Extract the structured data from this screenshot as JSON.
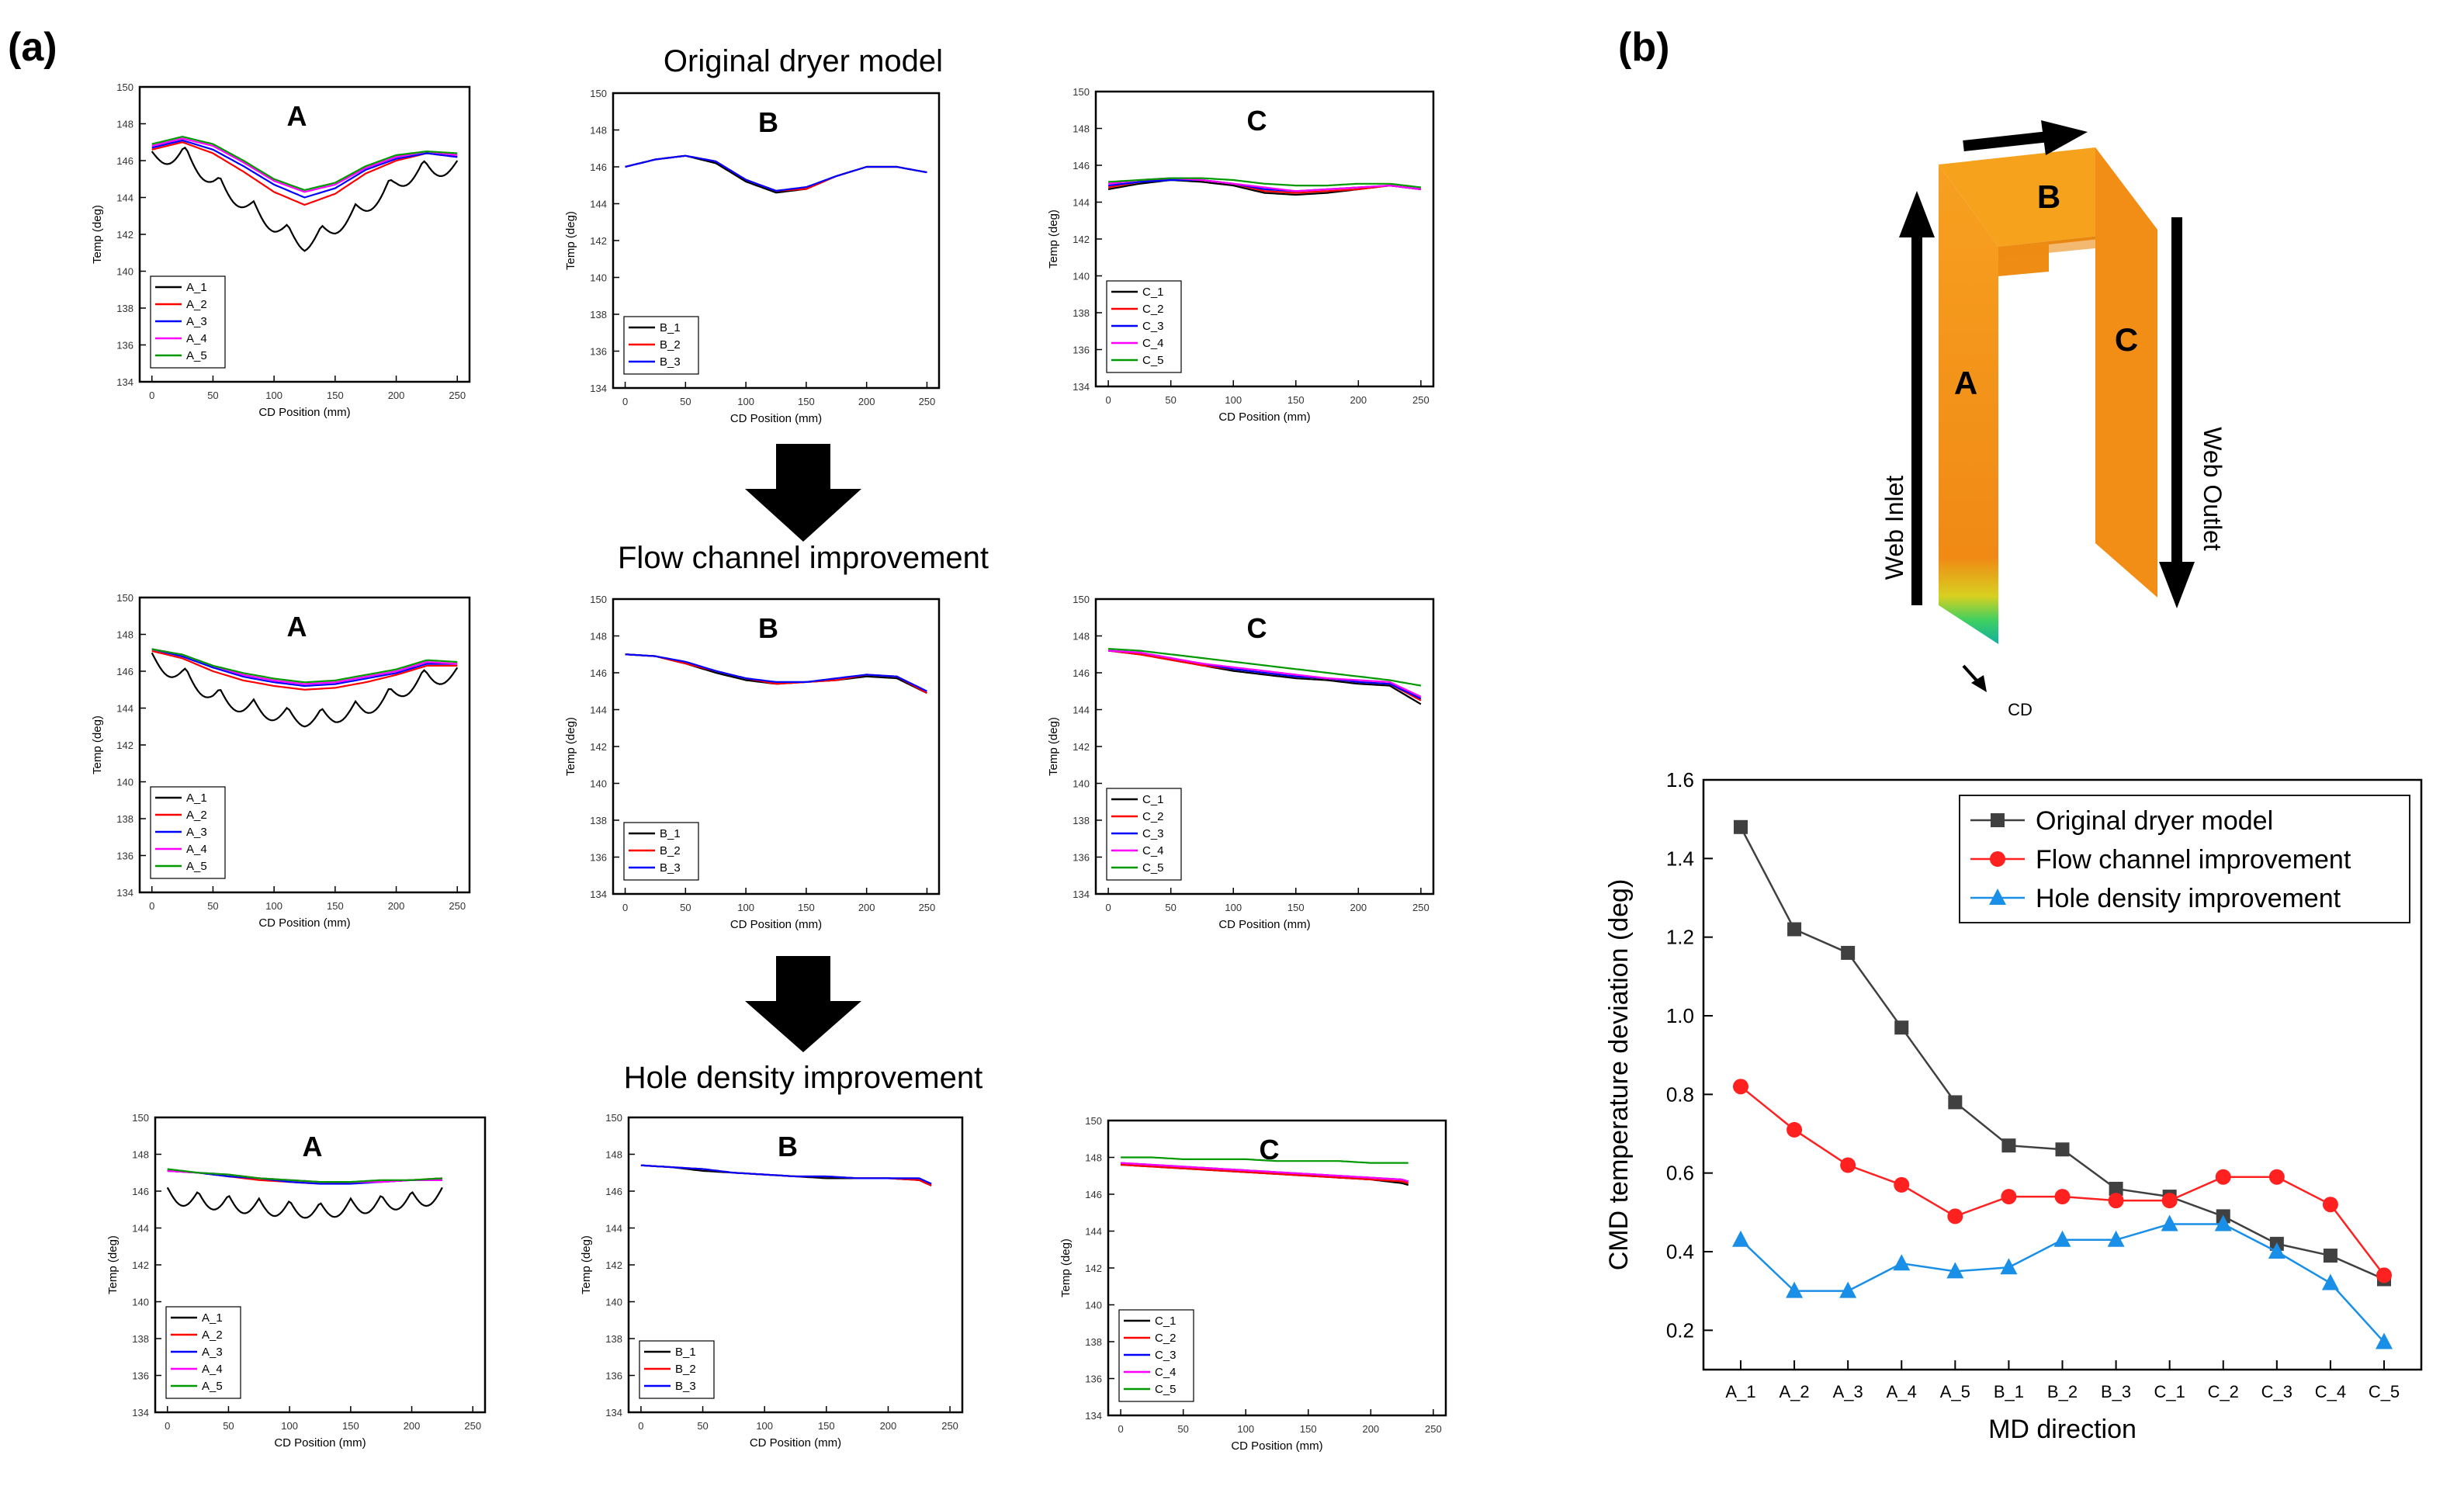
{
  "panel_labels": {
    "a": "(a)",
    "b": "(b)"
  },
  "row_titles": [
    "Original dryer model",
    "Flow channel improvement",
    "Hole density improvement"
  ],
  "small_axes": {
    "xlabel": "CD Position (mm)",
    "ylabel": "Temp (deg)"
  },
  "series_colors": [
    "#000000",
    "#ff0000",
    "#0000ff",
    "#ff00ff",
    "#009900"
  ],
  "diagram": {
    "labels": {
      "A": "A",
      "B": "B",
      "C": "C"
    },
    "inlet": "Web Inlet",
    "outlet": "Web Outlet",
    "cd": "CD"
  },
  "chart_data": [
    {
      "id": "orig-A",
      "type": "line",
      "title": "A",
      "xlabel": "CD Position (mm)",
      "ylabel": "Temp (deg)",
      "xlim": [
        -10,
        260
      ],
      "ylim": [
        134,
        150
      ],
      "xticks": [
        0,
        50,
        100,
        150,
        200,
        250
      ],
      "yticks": [
        134,
        136,
        138,
        140,
        142,
        144,
        146,
        148,
        150
      ],
      "legend": "bottom-left",
      "x": [
        0,
        25,
        50,
        75,
        100,
        125,
        150,
        175,
        200,
        225,
        250
      ],
      "series": [
        {
          "name": "A_1",
          "values": [
            146.5,
            146.9,
            145.4,
            144.2,
            143.0,
            142.0,
            142.9,
            144.0,
            145.3,
            146.1,
            146.0
          ],
          "ripple": true
        },
        {
          "name": "A_2",
          "values": [
            146.6,
            147.0,
            146.4,
            145.4,
            144.3,
            143.6,
            144.2,
            145.3,
            146.0,
            146.4,
            146.2
          ]
        },
        {
          "name": "A_3",
          "values": [
            146.7,
            147.1,
            146.6,
            145.7,
            144.7,
            144.0,
            144.5,
            145.5,
            146.1,
            146.4,
            146.2
          ]
        },
        {
          "name": "A_4",
          "values": [
            146.8,
            147.2,
            146.8,
            145.9,
            144.9,
            144.3,
            144.7,
            145.6,
            146.2,
            146.5,
            146.3
          ]
        },
        {
          "name": "A_5",
          "values": [
            146.9,
            147.3,
            146.9,
            146.0,
            145.0,
            144.4,
            144.8,
            145.7,
            146.3,
            146.5,
            146.4
          ]
        }
      ]
    },
    {
      "id": "orig-B",
      "type": "line",
      "title": "B",
      "xlabel": "CD Position (mm)",
      "ylabel": "Temp (deg)",
      "xlim": [
        -10,
        260
      ],
      "ylim": [
        134,
        150
      ],
      "xticks": [
        0,
        50,
        100,
        150,
        200,
        250
      ],
      "yticks": [
        134,
        136,
        138,
        140,
        142,
        144,
        146,
        148,
        150
      ],
      "legend": "bottom-left",
      "x": [
        0,
        25,
        50,
        75,
        100,
        125,
        150,
        175,
        200,
        225,
        250
      ],
      "series": [
        {
          "name": "B_1",
          "values": [
            146.0,
            146.4,
            146.6,
            146.2,
            145.2,
            144.6,
            144.8,
            145.5,
            146.0,
            146.0,
            145.7
          ]
        },
        {
          "name": "B_2",
          "values": [
            146.0,
            146.4,
            146.6,
            146.3,
            145.3,
            144.7,
            144.8,
            145.5,
            146.0,
            146.0,
            145.7
          ]
        },
        {
          "name": "B_3",
          "values": [
            146.0,
            146.4,
            146.6,
            146.3,
            145.3,
            144.7,
            144.9,
            145.5,
            146.0,
            146.0,
            145.7
          ]
        }
      ]
    },
    {
      "id": "orig-C",
      "type": "line",
      "title": "C",
      "xlabel": "CD Position (mm)",
      "ylabel": "Temp (deg)",
      "xlim": [
        -10,
        260
      ],
      "ylim": [
        134,
        150
      ],
      "xticks": [
        0,
        50,
        100,
        150,
        200,
        250
      ],
      "yticks": [
        134,
        136,
        138,
        140,
        142,
        144,
        146,
        148,
        150
      ],
      "legend": "bottom-left",
      "x": [
        0,
        25,
        50,
        75,
        100,
        125,
        150,
        175,
        200,
        225,
        250
      ],
      "series": [
        {
          "name": "C_1",
          "values": [
            144.7,
            145.0,
            145.2,
            145.1,
            144.9,
            144.5,
            144.4,
            144.5,
            144.7,
            144.9,
            144.7
          ]
        },
        {
          "name": "C_2",
          "values": [
            144.8,
            145.1,
            145.3,
            145.2,
            145.0,
            144.6,
            144.5,
            144.6,
            144.7,
            144.9,
            144.7
          ]
        },
        {
          "name": "C_3",
          "values": [
            144.9,
            145.1,
            145.2,
            145.2,
            145.0,
            144.7,
            144.6,
            144.7,
            144.8,
            144.9,
            144.7
          ]
        },
        {
          "name": "C_4",
          "values": [
            145.0,
            145.2,
            145.3,
            145.2,
            145.0,
            144.8,
            144.6,
            144.7,
            144.8,
            144.9,
            144.7
          ]
        },
        {
          "name": "C_5",
          "values": [
            145.1,
            145.2,
            145.3,
            145.3,
            145.2,
            145.0,
            144.9,
            144.9,
            145.0,
            145.0,
            144.8
          ]
        }
      ]
    },
    {
      "id": "flow-A",
      "type": "line",
      "title": "A",
      "xlabel": "CD Position (mm)",
      "ylabel": "Temp (deg)",
      "xlim": [
        -10,
        260
      ],
      "ylim": [
        134,
        150
      ],
      "xticks": [
        0,
        50,
        100,
        150,
        200,
        250
      ],
      "yticks": [
        134,
        136,
        138,
        140,
        142,
        144,
        146,
        148,
        150
      ],
      "legend": "bottom-left",
      "x": [
        0,
        25,
        50,
        75,
        100,
        125,
        150,
        175,
        200,
        225,
        250
      ],
      "series": [
        {
          "name": "A_1",
          "values": [
            147.0,
            146.3,
            145.2,
            144.6,
            144.2,
            143.9,
            144.1,
            144.5,
            145.3,
            146.2,
            146.2
          ],
          "ripple": true
        },
        {
          "name": "A_2",
          "values": [
            147.1,
            146.7,
            146.0,
            145.5,
            145.2,
            145.0,
            145.1,
            145.4,
            145.8,
            146.3,
            146.3
          ]
        },
        {
          "name": "A_3",
          "values": [
            147.2,
            146.8,
            146.2,
            145.7,
            145.4,
            145.2,
            145.3,
            145.6,
            145.9,
            146.4,
            146.4
          ]
        },
        {
          "name": "A_4",
          "values": [
            147.2,
            146.9,
            146.3,
            145.8,
            145.5,
            145.3,
            145.4,
            145.7,
            146.0,
            146.5,
            146.4
          ]
        },
        {
          "name": "A_5",
          "values": [
            147.2,
            146.9,
            146.3,
            145.9,
            145.6,
            145.4,
            145.5,
            145.8,
            146.1,
            146.6,
            146.5
          ]
        }
      ]
    },
    {
      "id": "flow-B",
      "type": "line",
      "title": "B",
      "xlabel": "CD Position (mm)",
      "ylabel": "Temp (deg)",
      "xlim": [
        -10,
        260
      ],
      "ylim": [
        134,
        150
      ],
      "xticks": [
        0,
        50,
        100,
        150,
        200,
        250
      ],
      "yticks": [
        134,
        136,
        138,
        140,
        142,
        144,
        146,
        148,
        150
      ],
      "legend": "bottom-left",
      "x": [
        0,
        25,
        50,
        75,
        100,
        125,
        150,
        175,
        200,
        225,
        250
      ],
      "series": [
        {
          "name": "B_1",
          "values": [
            147.0,
            146.9,
            146.5,
            146.0,
            145.6,
            145.4,
            145.5,
            145.6,
            145.8,
            145.7,
            144.9
          ]
        },
        {
          "name": "B_2",
          "values": [
            147.0,
            146.9,
            146.5,
            146.1,
            145.7,
            145.4,
            145.5,
            145.6,
            145.9,
            145.8,
            144.9
          ]
        },
        {
          "name": "B_3",
          "values": [
            147.0,
            146.9,
            146.6,
            146.1,
            145.7,
            145.5,
            145.5,
            145.7,
            145.9,
            145.8,
            145.0
          ]
        }
      ]
    },
    {
      "id": "flow-C",
      "type": "line",
      "title": "C",
      "xlabel": "CD Position (mm)",
      "ylabel": "Temp (deg)",
      "xlim": [
        -10,
        260
      ],
      "ylim": [
        134,
        150
      ],
      "xticks": [
        0,
        50,
        100,
        150,
        200,
        250
      ],
      "yticks": [
        134,
        136,
        138,
        140,
        142,
        144,
        146,
        148,
        150
      ],
      "legend": "bottom-left",
      "x": [
        0,
        25,
        50,
        75,
        100,
        125,
        150,
        175,
        200,
        225,
        250
      ],
      "series": [
        {
          "name": "C_1",
          "values": [
            147.2,
            147.0,
            146.7,
            146.4,
            146.1,
            145.9,
            145.7,
            145.6,
            145.4,
            145.3,
            144.3
          ]
        },
        {
          "name": "C_2",
          "values": [
            147.2,
            147.0,
            146.7,
            146.4,
            146.2,
            146.0,
            145.8,
            145.7,
            145.5,
            145.4,
            144.5
          ]
        },
        {
          "name": "C_3",
          "values": [
            147.2,
            147.1,
            146.8,
            146.5,
            146.2,
            146.0,
            145.8,
            145.7,
            145.5,
            145.4,
            144.6
          ]
        },
        {
          "name": "C_4",
          "values": [
            147.2,
            147.1,
            146.8,
            146.5,
            146.3,
            146.1,
            145.9,
            145.7,
            145.6,
            145.5,
            144.7
          ]
        },
        {
          "name": "C_5",
          "values": [
            147.3,
            147.2,
            147.0,
            146.8,
            146.6,
            146.4,
            146.2,
            146.0,
            145.8,
            145.6,
            145.3
          ]
        }
      ]
    },
    {
      "id": "hole-A",
      "type": "line",
      "title": "A",
      "xlabel": "CD Position (mm)",
      "ylabel": "Temp (deg)",
      "xlim": [
        -10,
        260
      ],
      "ylim": [
        134,
        150
      ],
      "xticks": [
        0,
        50,
        100,
        150,
        200,
        250
      ],
      "yticks": [
        134,
        136,
        138,
        140,
        142,
        144,
        146,
        148,
        150
      ],
      "legend": "bottom-left",
      "x": [
        0,
        25,
        50,
        75,
        100,
        125,
        150,
        175,
        200,
        225
      ],
      "series": [
        {
          "name": "A_1",
          "values": [
            146.2,
            146.0,
            145.8,
            145.6,
            145.5,
            145.4,
            145.6,
            145.8,
            146.0,
            146.2
          ],
          "ripple": true
        },
        {
          "name": "A_2",
          "values": [
            147.1,
            147.0,
            146.8,
            146.6,
            146.5,
            146.4,
            146.5,
            146.5,
            146.6,
            146.7
          ]
        },
        {
          "name": "A_3",
          "values": [
            147.1,
            147.0,
            146.8,
            146.7,
            146.5,
            146.4,
            146.4,
            146.5,
            146.6,
            146.6
          ]
        },
        {
          "name": "A_4",
          "values": [
            147.1,
            147.0,
            146.9,
            146.7,
            146.6,
            146.5,
            146.5,
            146.5,
            146.6,
            146.6
          ]
        },
        {
          "name": "A_5",
          "values": [
            147.2,
            147.0,
            146.9,
            146.7,
            146.6,
            146.5,
            146.5,
            146.6,
            146.6,
            146.7
          ]
        }
      ]
    },
    {
      "id": "hole-B",
      "type": "line",
      "title": "B",
      "xlabel": "CD Position (mm)",
      "ylabel": "Temp (deg)",
      "xlim": [
        -10,
        260
      ],
      "ylim": [
        134,
        150
      ],
      "xticks": [
        0,
        50,
        100,
        150,
        200,
        250
      ],
      "yticks": [
        134,
        136,
        138,
        140,
        142,
        144,
        146,
        148,
        150
      ],
      "legend": "bottom-left",
      "x": [
        0,
        25,
        50,
        75,
        100,
        125,
        150,
        175,
        200,
        225,
        235
      ],
      "series": [
        {
          "name": "B_1",
          "values": [
            147.4,
            147.3,
            147.1,
            147.0,
            146.9,
            146.8,
            146.7,
            146.7,
            146.7,
            146.6,
            146.3
          ]
        },
        {
          "name": "B_2",
          "values": [
            147.4,
            147.3,
            147.2,
            147.0,
            146.9,
            146.8,
            146.8,
            146.7,
            146.7,
            146.6,
            146.3
          ]
        },
        {
          "name": "B_3",
          "values": [
            147.4,
            147.3,
            147.2,
            147.0,
            146.9,
            146.8,
            146.8,
            146.7,
            146.7,
            146.7,
            146.4
          ]
        }
      ]
    },
    {
      "id": "hole-C",
      "type": "line",
      "title": "C",
      "xlabel": "CD Position (mm)",
      "ylabel": "Temp (deg)",
      "xlim": [
        -10,
        260
      ],
      "ylim": [
        134,
        150
      ],
      "xticks": [
        0,
        50,
        100,
        150,
        200,
        250
      ],
      "yticks": [
        134,
        136,
        138,
        140,
        142,
        144,
        146,
        148,
        150
      ],
      "legend": "bottom-left",
      "x": [
        0,
        25,
        50,
        75,
        100,
        125,
        150,
        175,
        200,
        225,
        230
      ],
      "series": [
        {
          "name": "C_1",
          "values": [
            147.6,
            147.5,
            147.4,
            147.3,
            147.2,
            147.1,
            147.0,
            146.9,
            146.8,
            146.6,
            146.5
          ]
        },
        {
          "name": "C_2",
          "values": [
            147.6,
            147.5,
            147.4,
            147.3,
            147.2,
            147.1,
            147.0,
            146.9,
            146.8,
            146.7,
            146.6
          ]
        },
        {
          "name": "C_3",
          "values": [
            147.7,
            147.6,
            147.5,
            147.4,
            147.3,
            147.2,
            147.1,
            147.0,
            146.9,
            146.8,
            146.7
          ]
        },
        {
          "name": "C_4",
          "values": [
            147.7,
            147.6,
            147.5,
            147.4,
            147.3,
            147.2,
            147.1,
            147.0,
            146.9,
            146.8,
            146.7
          ]
        },
        {
          "name": "C_5",
          "values": [
            148.0,
            148.0,
            147.9,
            147.9,
            147.9,
            147.8,
            147.8,
            147.8,
            147.7,
            147.7,
            147.7
          ]
        }
      ]
    },
    {
      "id": "deviation",
      "type": "line",
      "title": "",
      "xlabel": "MD direction",
      "ylabel": "CMD temperature deviation (deg)",
      "ylim": [
        0.1,
        1.6
      ],
      "yticks": [
        0.2,
        0.4,
        0.6,
        0.8,
        1.0,
        1.2,
        1.4,
        1.6
      ],
      "legend": "top-right",
      "categories": [
        "A_1",
        "A_2",
        "A_3",
        "A_4",
        "A_5",
        "B_1",
        "B_2",
        "B_3",
        "C_1",
        "C_2",
        "C_3",
        "C_4",
        "C_5"
      ],
      "series": [
        {
          "name": "Original dryer model",
          "color": "#404040",
          "marker": "square",
          "values": [
            1.48,
            1.22,
            1.16,
            0.97,
            0.78,
            0.67,
            0.66,
            0.56,
            0.54,
            0.49,
            0.42,
            0.39,
            0.33
          ]
        },
        {
          "name": "Flow channel improvement",
          "color": "#ff2020",
          "marker": "circle",
          "values": [
            0.82,
            0.71,
            0.62,
            0.57,
            0.49,
            0.54,
            0.54,
            0.53,
            0.53,
            0.59,
            0.59,
            0.52,
            0.34
          ]
        },
        {
          "name": "Hole density improvement",
          "color": "#1a8fe8",
          "marker": "triangle",
          "values": [
            0.43,
            0.3,
            0.3,
            0.37,
            0.35,
            0.36,
            0.43,
            0.43,
            0.47,
            0.47,
            0.4,
            0.32,
            0.17
          ]
        }
      ]
    }
  ]
}
